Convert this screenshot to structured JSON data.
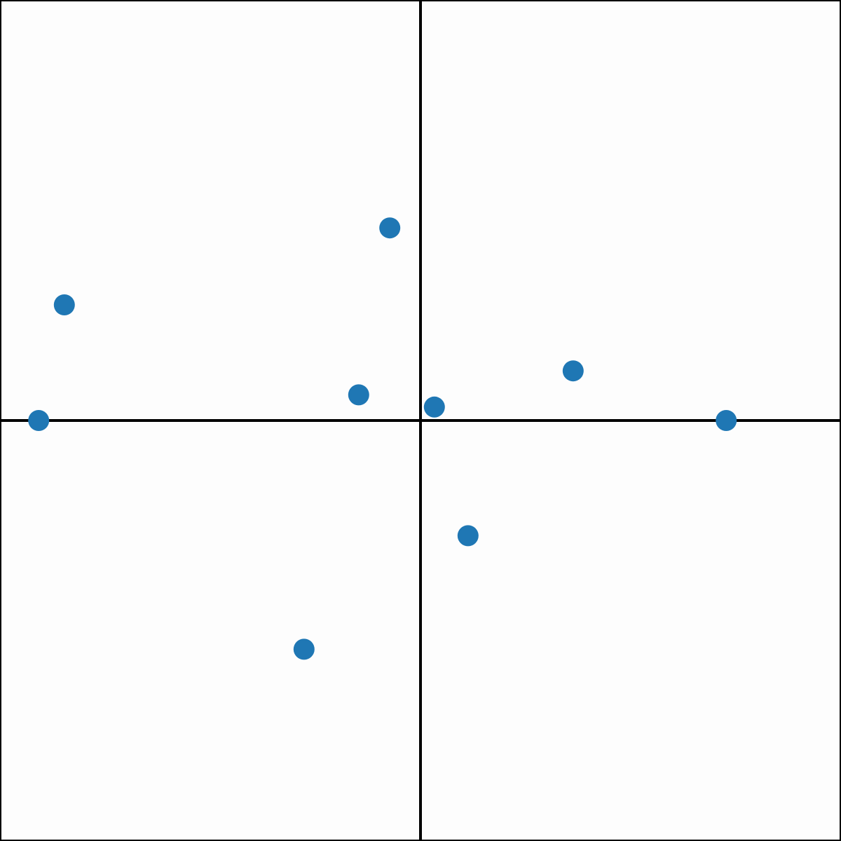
{
  "chart_data": {
    "type": "scatter",
    "title": "",
    "xlabel": "",
    "ylabel": "",
    "xlim": [
      -1,
      1
    ],
    "ylim": [
      -1,
      1
    ],
    "grid": false,
    "axes_through_origin": true,
    "marker_color": "#1f77b4",
    "axis_color": "#000000",
    "background_color": "#fdfdfd",
    "series": [
      {
        "points": [
          {
            "x": -0.073,
            "y": 0.458
          },
          {
            "x": -0.847,
            "y": 0.275
          },
          {
            "x": -0.908,
            "y": 0.0
          },
          {
            "x": -0.147,
            "y": 0.061
          },
          {
            "x": 0.033,
            "y": 0.032
          },
          {
            "x": 0.363,
            "y": 0.118
          },
          {
            "x": 0.727,
            "y": 0.0
          },
          {
            "x": 0.113,
            "y": -0.274
          },
          {
            "x": -0.277,
            "y": -0.544
          }
        ]
      }
    ]
  }
}
